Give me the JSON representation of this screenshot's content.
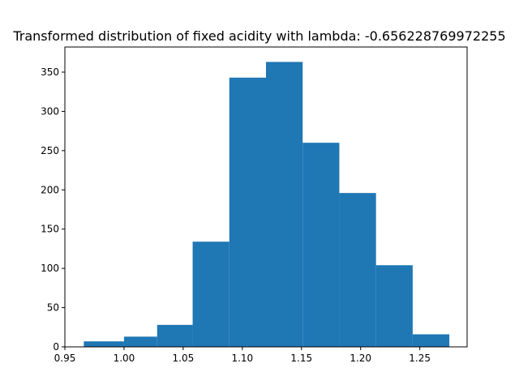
{
  "chart_data": {
    "type": "bar",
    "title": "Transformed distribution of fixed acidity with lambda: -0.656228769972255",
    "xlabel": "",
    "ylabel": "",
    "xlim": [
      0.95,
      1.29
    ],
    "ylim": [
      0,
      382
    ],
    "bins": [
      {
        "x0": 0.966,
        "x1": 1.0,
        "count": 7
      },
      {
        "x0": 1.0,
        "x1": 1.028,
        "count": 13
      },
      {
        "x0": 1.028,
        "x1": 1.058,
        "count": 28
      },
      {
        "x0": 1.058,
        "x1": 1.089,
        "count": 134
      },
      {
        "x0": 1.089,
        "x1": 1.12,
        "count": 343
      },
      {
        "x0": 1.12,
        "x1": 1.151,
        "count": 363
      },
      {
        "x0": 1.151,
        "x1": 1.182,
        "count": 260
      },
      {
        "x0": 1.182,
        "x1": 1.213,
        "count": 196
      },
      {
        "x0": 1.213,
        "x1": 1.244,
        "count": 104
      },
      {
        "x0": 1.244,
        "x1": 1.275,
        "count": 16
      }
    ],
    "xticks": [
      "0.95",
      "1.00",
      "1.05",
      "1.10",
      "1.15",
      "1.20",
      "1.25"
    ],
    "yticks": [
      "0",
      "50",
      "100",
      "150",
      "200",
      "250",
      "300",
      "350"
    ],
    "bar_color": "#1f77b4",
    "grid": false,
    "legend": "none"
  }
}
